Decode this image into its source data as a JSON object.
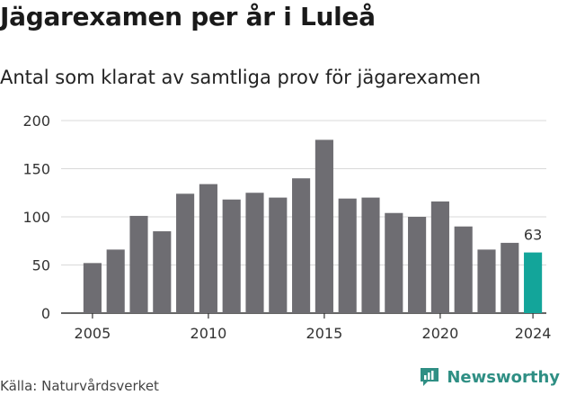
{
  "title": "Jägarexamen per år i Luleå",
  "subtitle": "Antal som klarat av samtliga prov för jägarexamen",
  "source": "Källa: Naturvårdsverket",
  "brand": "Newsworthy",
  "colors": {
    "bar": "#6e6d72",
    "highlight": "#13a59a",
    "brand": "#2f8f84",
    "grid": "#d9d9d9"
  },
  "chart_data": {
    "type": "bar",
    "x": [
      2005,
      2006,
      2007,
      2008,
      2009,
      2010,
      2011,
      2012,
      2013,
      2014,
      2015,
      2016,
      2017,
      2018,
      2019,
      2020,
      2021,
      2022,
      2023,
      2024
    ],
    "values": [
      52,
      66,
      101,
      85,
      124,
      134,
      118,
      125,
      120,
      140,
      180,
      119,
      120,
      104,
      100,
      116,
      90,
      66,
      73,
      63
    ],
    "xticks": [
      "2005",
      "2010",
      "2015",
      "2020",
      "2024"
    ],
    "yticks": [
      "0",
      "50",
      "100",
      "150",
      "200"
    ],
    "ylim": [
      0,
      200
    ],
    "highlight": {
      "x": 2024,
      "label": "63"
    },
    "grid": true
  }
}
